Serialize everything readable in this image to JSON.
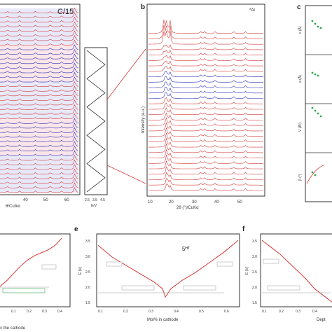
{
  "colors": {
    "red": "#d43a3a",
    "blue": "#2b2fb8",
    "axis": "#333333",
    "pink": "#f2b8c0",
    "lightblue": "#b9c0ee",
    "ref": "#2ea84a"
  },
  "panels": {
    "a": {
      "title": "C/15",
      "xticks": [
        "40",
        "50",
        "60"
      ],
      "xlabel": "θ/Cutkα",
      "inset_ticks": [
        "2.5",
        "3.5",
        "4.5"
      ],
      "inset_label": "E/V"
    },
    "b": {
      "letter": "b",
      "title": "*Al",
      "ylabel": "Intensity (a.u.)",
      "xticks": [
        "10",
        "20",
        "30",
        "40",
        "50"
      ],
      "xlabel": "2θ (°)/CuKα"
    },
    "c": {
      "letter": "c",
      "row_labels": [
        "c (Å)",
        "a (Å)",
        "V (Å³)",
        "β (°)"
      ]
    },
    "d": {
      "xticks": [
        "0.1",
        "0.2",
        "0.3",
        "0.4"
      ],
      "xlabel": "x the cathode"
    },
    "e": {
      "letter": "e",
      "title": "5ᴴᵀ",
      "yticks": [
        "3.5",
        "3.0",
        "2.5",
        "2.0",
        "1.5"
      ],
      "ylabel": "E (V)",
      "xticks": [
        "0.1",
        "0.2",
        "0.3",
        "0.4",
        "0.5",
        "0.6"
      ],
      "xlabel": "Mol% in cathode"
    },
    "f": {
      "letter": "f",
      "yticks": [
        "3.5",
        "3.0",
        "2.5",
        "2.0",
        "1.5"
      ],
      "ylabel": "E (V)",
      "xticks": [
        "0.1",
        "0.2",
        "0.3",
        "0.4"
      ],
      "xlabel": "Dept"
    }
  },
  "chart_data": [
    {
      "panel": "a",
      "type": "line",
      "xlabel": "θ/Cutkα",
      "xlim": [
        30,
        64
      ],
      "trace_count": 40,
      "series_colors_in_order": [
        "red",
        "blue",
        "red",
        "blue",
        "red"
      ],
      "peaks_2theta": [
        33.2,
        38.5,
        45.4,
        51.8,
        56.7,
        62.4
      ]
    },
    {
      "panel": "a-inset",
      "type": "line",
      "xlabel": "E/V",
      "x_ticks": [
        2.5,
        3.5,
        4.5
      ],
      "cycles": 5,
      "E_range": [
        2.5,
        4.5
      ]
    },
    {
      "panel": "b",
      "type": "line",
      "xlabel": "2θ (°)/CuKα",
      "ylabel": "Intensity (a.u.)",
      "xlim": [
        8,
        56
      ],
      "trace_count": 30,
      "peaks_2theta": [
        14.4,
        15.6,
        17.0,
        29.8,
        31.5,
        35.8,
        43.6,
        48.5
      ]
    },
    {
      "panel": "c",
      "type": "scatter",
      "rows": [
        "c (Å)",
        "a (Å)",
        "V (Å³)",
        "β (°)"
      ]
    },
    {
      "panel": "d",
      "type": "line",
      "xlabel": "x the cathode",
      "xlim": [
        0.0,
        0.5
      ],
      "ylim": [
        1.4,
        3.8
      ],
      "x": [
        0.0,
        0.05,
        0.1,
        0.15,
        0.2,
        0.25,
        0.3,
        0.35,
        0.4,
        0.45
      ],
      "y": [
        2.05,
        2.25,
        2.5,
        2.75,
        2.95,
        3.1,
        3.2,
        3.3,
        3.45,
        3.7
      ]
    },
    {
      "panel": "e",
      "type": "line",
      "xlabel": "Mol% in cathode",
      "ylabel": "E (V)",
      "xlim": [
        0.1,
        0.6
      ],
      "ylim": [
        1.5,
        3.6
      ],
      "x": [
        0.1,
        0.15,
        0.2,
        0.25,
        0.3,
        0.33,
        0.34,
        0.36,
        0.4,
        0.45,
        0.5,
        0.55,
        0.6
      ],
      "y": [
        3.3,
        2.95,
        2.7,
        2.45,
        2.2,
        2.0,
        1.75,
        2.0,
        2.25,
        2.5,
        2.8,
        3.1,
        3.45
      ]
    },
    {
      "panel": "f",
      "type": "line",
      "xlabel": "Dept",
      "ylabel": "E (V)",
      "xlim": [
        0.05,
        0.45
      ],
      "ylim": [
        1.5,
        3.6
      ],
      "x": [
        0.05,
        0.1,
        0.15,
        0.2,
        0.25,
        0.3,
        0.35,
        0.4,
        0.45
      ],
      "y": [
        3.45,
        3.25,
        3.05,
        2.8,
        2.55,
        2.3,
        2.0,
        1.8,
        1.6
      ]
    }
  ]
}
